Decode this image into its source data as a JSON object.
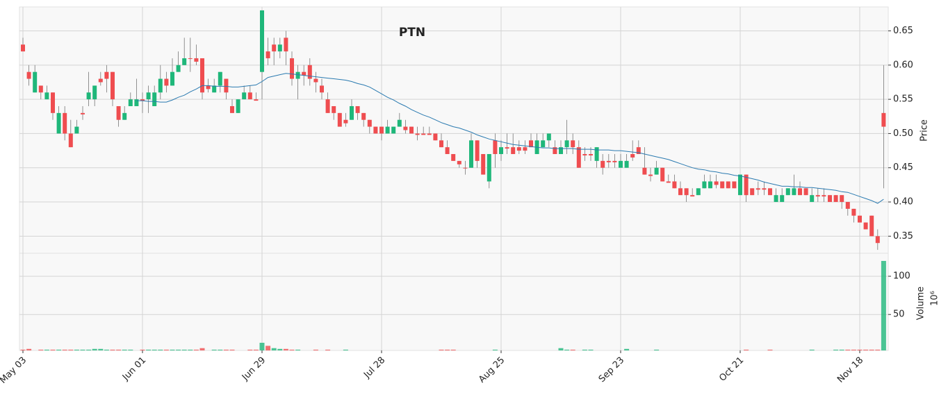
{
  "chart_data": {
    "type": "candlestick",
    "title": "PTN",
    "ylabel": "Price",
    "volume_label": "Volume",
    "volume_scale_label": "10⁶",
    "up_color": "#1fb77a",
    "down_color": "#ef4d50",
    "mav_color": "#2a7ab0",
    "grid": true,
    "categories": [
      "May 03",
      null,
      null,
      null,
      null,
      null,
      null,
      null,
      null,
      null,
      null,
      null,
      null,
      null,
      null,
      null,
      null,
      null,
      null,
      null,
      "Jun 01",
      null,
      null,
      null,
      null,
      null,
      null,
      null,
      null,
      null,
      null,
      null,
      null,
      null,
      null,
      null,
      null,
      null,
      null,
      null,
      "Jun 29",
      null,
      null,
      null,
      null,
      null,
      null,
      null,
      null,
      null,
      null,
      null,
      null,
      null,
      null,
      null,
      null,
      null,
      null,
      null,
      "Jul 28",
      null,
      null,
      null,
      null,
      null,
      null,
      null,
      null,
      null,
      null,
      null,
      null,
      null,
      null,
      null,
      null,
      null,
      null,
      null,
      "Aug 25",
      null,
      null,
      null,
      null,
      null,
      null,
      null,
      null,
      null,
      null,
      null,
      null,
      null,
      null,
      null,
      null,
      null,
      null,
      null,
      "Sep 23",
      null,
      null,
      null,
      null,
      null,
      null,
      null,
      null,
      null,
      null,
      null,
      null,
      null,
      null,
      null,
      null,
      null,
      null,
      null,
      "Oct 21",
      null,
      null,
      null,
      null,
      null,
      null,
      null,
      null,
      null,
      null,
      null,
      null,
      null,
      null,
      null,
      null,
      null,
      null,
      null,
      "Nov 18",
      null,
      null,
      null,
      null
    ],
    "open": [
      0.63,
      0.59,
      0.56,
      0.57,
      0.55,
      0.56,
      0.5,
      0.53,
      0.5,
      0.5,
      0.53,
      0.55,
      0.55,
      0.58,
      0.59,
      0.59,
      0.54,
      0.52,
      0.54,
      0.54,
      0.55,
      0.55,
      0.54,
      0.56,
      0.58,
      0.57,
      0.59,
      0.6,
      0.61,
      0.61,
      0.61,
      0.57,
      0.56,
      0.57,
      0.58,
      0.54,
      0.53,
      0.55,
      0.56,
      0.55,
      0.59,
      0.62,
      0.63,
      0.62,
      0.64,
      0.61,
      0.58,
      0.59,
      0.6,
      0.58,
      0.57,
      0.55,
      0.54,
      0.53,
      0.52,
      0.52,
      0.54,
      0.53,
      0.52,
      0.51,
      0.51,
      0.5,
      0.5,
      0.51,
      0.51,
      0.51,
      0.5,
      0.5,
      0.5,
      0.5,
      0.49,
      0.48,
      0.47,
      0.46,
      0.45,
      0.45,
      0.49,
      0.47,
      0.43,
      0.49,
      0.47,
      0.48,
      0.48,
      0.48,
      0.48,
      0.49,
      0.47,
      0.48,
      0.49,
      0.48,
      0.47,
      0.48,
      0.49,
      0.48,
      0.47,
      0.47,
      0.46,
      0.46,
      0.46,
      0.46,
      0.45,
      0.45,
      0.47,
      0.48,
      0.45,
      0.44,
      0.44,
      0.45,
      0.43,
      0.43,
      0.42,
      0.42,
      0.41,
      0.41,
      0.42,
      0.42,
      0.43,
      0.43,
      0.43,
      0.43,
      0.41,
      0.44,
      0.42,
      0.42,
      0.42,
      0.42,
      0.4,
      0.4,
      0.41,
      0.41,
      0.42,
      0.42,
      0.4,
      0.41,
      0.41,
      0.41,
      0.41,
      0.41,
      0.4,
      0.39,
      0.38,
      0.37,
      0.38,
      0.35,
      0.53
    ],
    "high": [
      0.64,
      0.6,
      0.6,
      0.57,
      0.57,
      0.56,
      0.54,
      0.54,
      0.52,
      0.52,
      0.54,
      0.59,
      0.57,
      0.59,
      0.6,
      0.59,
      0.54,
      0.54,
      0.56,
      0.58,
      0.56,
      0.57,
      0.57,
      0.6,
      0.59,
      0.61,
      0.62,
      0.64,
      0.64,
      0.63,
      0.61,
      0.58,
      0.58,
      0.59,
      0.58,
      0.55,
      0.55,
      0.57,
      0.57,
      0.56,
      0.68,
      0.64,
      0.64,
      0.64,
      0.65,
      0.62,
      0.6,
      0.6,
      0.61,
      0.59,
      0.58,
      0.56,
      0.54,
      0.53,
      0.53,
      0.55,
      0.54,
      0.53,
      0.52,
      0.51,
      0.51,
      0.52,
      0.51,
      0.53,
      0.52,
      0.51,
      0.51,
      0.51,
      0.51,
      0.5,
      0.5,
      0.49,
      0.47,
      0.46,
      0.46,
      0.5,
      0.49,
      0.47,
      0.47,
      0.5,
      0.49,
      0.5,
      0.5,
      0.49,
      0.49,
      0.5,
      0.5,
      0.5,
      0.5,
      0.49,
      0.49,
      0.52,
      0.5,
      0.49,
      0.48,
      0.48,
      0.48,
      0.47,
      0.47,
      0.47,
      0.47,
      0.47,
      0.49,
      0.49,
      0.48,
      0.45,
      0.46,
      0.45,
      0.44,
      0.44,
      0.43,
      0.42,
      0.42,
      0.42,
      0.44,
      0.44,
      0.44,
      0.43,
      0.43,
      0.43,
      0.44,
      0.44,
      0.42,
      0.43,
      0.43,
      0.42,
      0.42,
      0.42,
      0.42,
      0.44,
      0.43,
      0.42,
      0.42,
      0.42,
      0.42,
      0.41,
      0.41,
      0.41,
      0.4,
      0.39,
      0.38,
      0.37,
      0.38,
      0.36,
      0.6
    ],
    "low": [
      0.62,
      0.57,
      0.56,
      0.55,
      0.55,
      0.52,
      0.5,
      0.49,
      0.48,
      0.5,
      0.52,
      0.54,
      0.54,
      0.57,
      0.56,
      0.54,
      0.51,
      0.52,
      0.54,
      0.54,
      0.53,
      0.53,
      0.54,
      0.55,
      0.56,
      0.57,
      0.59,
      0.6,
      0.59,
      0.6,
      0.55,
      0.56,
      0.56,
      0.56,
      0.55,
      0.53,
      0.53,
      0.55,
      0.55,
      0.55,
      0.55,
      0.6,
      0.6,
      0.61,
      0.6,
      0.57,
      0.55,
      0.57,
      0.57,
      0.56,
      0.55,
      0.53,
      0.52,
      0.51,
      0.51,
      0.52,
      0.52,
      0.51,
      0.5,
      0.5,
      0.49,
      0.5,
      0.5,
      0.51,
      0.5,
      0.5,
      0.49,
      0.5,
      0.5,
      0.49,
      0.48,
      0.47,
      0.46,
      0.45,
      0.44,
      0.45,
      0.45,
      0.44,
      0.42,
      0.45,
      0.46,
      0.47,
      0.47,
      0.47,
      0.47,
      0.48,
      0.47,
      0.48,
      0.48,
      0.47,
      0.47,
      0.47,
      0.47,
      0.45,
      0.46,
      0.46,
      0.45,
      0.44,
      0.45,
      0.45,
      0.45,
      0.45,
      0.46,
      0.47,
      0.44,
      0.43,
      0.44,
      0.43,
      0.43,
      0.42,
      0.41,
      0.4,
      0.41,
      0.41,
      0.42,
      0.42,
      0.42,
      0.42,
      0.42,
      0.42,
      0.41,
      0.4,
      0.41,
      0.41,
      0.41,
      0.41,
      0.4,
      0.4,
      0.41,
      0.41,
      0.41,
      0.41,
      0.4,
      0.4,
      0.4,
      0.4,
      0.4,
      0.39,
      0.38,
      0.37,
      0.37,
      0.36,
      0.35,
      0.33,
      0.42
    ],
    "close": [
      0.62,
      0.58,
      0.59,
      0.56,
      0.56,
      0.53,
      0.53,
      0.5,
      0.48,
      0.51,
      0.528,
      0.56,
      0.57,
      0.575,
      0.58,
      0.55,
      0.52,
      0.53,
      0.55,
      0.55,
      0.548,
      0.56,
      0.56,
      0.58,
      0.57,
      0.59,
      0.6,
      0.61,
      0.61,
      0.605,
      0.56,
      0.565,
      0.57,
      0.59,
      0.56,
      0.53,
      0.55,
      0.56,
      0.55,
      0.548,
      0.68,
      0.61,
      0.62,
      0.63,
      0.62,
      0.58,
      0.59,
      0.585,
      0.58,
      0.575,
      0.56,
      0.53,
      0.53,
      0.51,
      0.515,
      0.54,
      0.53,
      0.52,
      0.51,
      0.5,
      0.5,
      0.51,
      0.51,
      0.52,
      0.505,
      0.5,
      0.498,
      0.498,
      0.498,
      0.49,
      0.48,
      0.47,
      0.46,
      0.455,
      0.45,
      0.49,
      0.46,
      0.44,
      0.47,
      0.47,
      0.48,
      0.478,
      0.47,
      0.475,
      0.475,
      0.48,
      0.49,
      0.49,
      0.5,
      0.47,
      0.48,
      0.49,
      0.48,
      0.45,
      0.468,
      0.468,
      0.48,
      0.45,
      0.458,
      0.458,
      0.46,
      0.46,
      0.465,
      0.47,
      0.44,
      0.438,
      0.45,
      0.43,
      0.428,
      0.42,
      0.41,
      0.41,
      0.408,
      0.42,
      0.43,
      0.43,
      0.425,
      0.42,
      0.42,
      0.42,
      0.44,
      0.41,
      0.41,
      0.418,
      0.418,
      0.41,
      0.41,
      0.41,
      0.42,
      0.42,
      0.41,
      0.41,
      0.41,
      0.408,
      0.408,
      0.4,
      0.4,
      0.4,
      0.39,
      0.38,
      0.37,
      0.36,
      0.35,
      0.34,
      0.51
    ],
    "volume": [
      4,
      5,
      3,
      4,
      4,
      4,
      4,
      4,
      4,
      4,
      4,
      4,
      5,
      5,
      4,
      4,
      4,
      4,
      4,
      3,
      4,
      4,
      4,
      4,
      4,
      4,
      4,
      4,
      4,
      4,
      6,
      3,
      4,
      4,
      4,
      4,
      3,
      3,
      4,
      4,
      13,
      9,
      6,
      5,
      5,
      4,
      4,
      3,
      3,
      4,
      3,
      4,
      3,
      3,
      4,
      3,
      3,
      3,
      3,
      3,
      3,
      3,
      3,
      3,
      3,
      3,
      3,
      3,
      3,
      3,
      4,
      4,
      4,
      3,
      3,
      3,
      3,
      3,
      3,
      4,
      3,
      3,
      3,
      3,
      3,
      3,
      3,
      3,
      3,
      3,
      6,
      4,
      4,
      3,
      4,
      4,
      3,
      3,
      3,
      3,
      3,
      5,
      3,
      3,
      3,
      3,
      4,
      3,
      3,
      3,
      3,
      3,
      3,
      3,
      3,
      3,
      3,
      3,
      3,
      3,
      3,
      4,
      3,
      3,
      3,
      4,
      3,
      3,
      3,
      3,
      3,
      3,
      4,
      3,
      3,
      3,
      4,
      4,
      4,
      4,
      4,
      4,
      4,
      4,
      120
    ],
    "mav": [
      null,
      null,
      null,
      null,
      null,
      null,
      null,
      null,
      null,
      null,
      null,
      null,
      null,
      null,
      null,
      null,
      null,
      null,
      null,
      0.548,
      0.548,
      0.547,
      0.547,
      0.546,
      0.546,
      0.549,
      0.553,
      0.556,
      0.561,
      0.565,
      0.57,
      0.57,
      0.569,
      0.569,
      0.569,
      0.568,
      0.568,
      0.569,
      0.57,
      0.571,
      0.576,
      0.582,
      0.584,
      0.586,
      0.588,
      0.587,
      0.586,
      0.585,
      0.584,
      0.583,
      0.582,
      0.581,
      0.58,
      0.579,
      0.578,
      0.576,
      0.573,
      0.571,
      0.568,
      0.563,
      0.558,
      0.553,
      0.549,
      0.544,
      0.54,
      0.535,
      0.531,
      0.527,
      0.524,
      0.52,
      0.516,
      0.513,
      0.51,
      0.508,
      0.505,
      0.502,
      0.498,
      0.495,
      0.492,
      0.49,
      0.488,
      0.486,
      0.484,
      0.483,
      0.482,
      0.481,
      0.48,
      0.479,
      0.479,
      0.478,
      0.478,
      0.478,
      0.478,
      0.477,
      0.477,
      0.477,
      0.476,
      0.476,
      0.476,
      0.475,
      0.475,
      0.474,
      0.473,
      0.472,
      0.47,
      0.468,
      0.466,
      0.464,
      0.462,
      0.459,
      0.456,
      0.453,
      0.45,
      0.448,
      0.447,
      0.445,
      0.444,
      0.442,
      0.441,
      0.439,
      0.438,
      0.436,
      0.434,
      0.432,
      0.429,
      0.427,
      0.425,
      0.423,
      0.423,
      0.422,
      0.422,
      0.421,
      0.421,
      0.42,
      0.419,
      0.418,
      0.417,
      0.415,
      0.414,
      0.411,
      0.408,
      0.405,
      0.402,
      0.398,
      0.404
    ],
    "ylim": [
      0.325,
      0.685
    ],
    "yticks": [
      0.35,
      {
        "value": 0.4,
        "label": "0.40"
      },
      0.45,
      {
        "value": 0.5,
        "label": "0.50"
      },
      0.55,
      {
        "value": 0.6,
        "label": "0.60"
      },
      0.65
    ],
    "volume_ylim": [
      3,
      130
    ],
    "volume_yticks": [
      50,
      100
    ]
  }
}
